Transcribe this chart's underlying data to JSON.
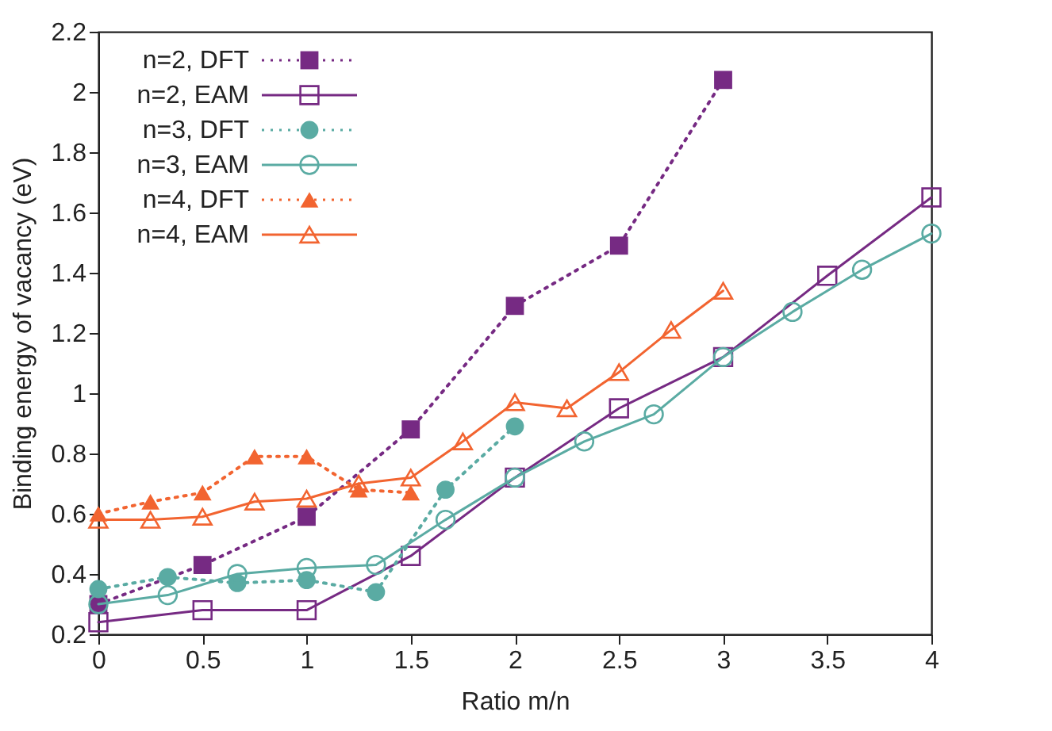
{
  "chart_data": {
    "type": "line",
    "xlabel": "Ratio m/n",
    "ylabel": "Binding energy of vacancy (eV)",
    "xlim": [
      0,
      4
    ],
    "ylim": [
      0.2,
      2.2
    ],
    "xticks": [
      0,
      0.5,
      1,
      1.5,
      2,
      2.5,
      3,
      3.5,
      4
    ],
    "yticks": [
      0.2,
      0.4,
      0.6,
      0.8,
      1,
      1.2,
      1.4,
      1.6,
      1.8,
      2,
      2.2
    ],
    "grid": false,
    "legend": "top left",
    "series": [
      {
        "name": "n=2, DFT",
        "color": "#762a83",
        "marker": "square",
        "line_style": "dotted",
        "x": [
          0,
          0.5,
          1,
          1.5,
          2,
          2.5,
          3
        ],
        "values": [
          0.3,
          0.43,
          0.59,
          0.88,
          1.29,
          1.49,
          2.04
        ]
      },
      {
        "name": "n=2, EAM",
        "color": "#762a83",
        "marker": "square",
        "line_style": "solid",
        "x": [
          0,
          0.5,
          1,
          1.5,
          2,
          2.5,
          3,
          3.5,
          4
        ],
        "values": [
          0.24,
          0.28,
          0.28,
          0.46,
          0.72,
          0.95,
          1.12,
          1.39,
          1.65
        ]
      },
      {
        "name": "n=3, DFT",
        "color": "#5aaba3",
        "marker": "circle",
        "line_style": "dotted",
        "x": [
          0,
          0.333,
          0.667,
          1,
          1.333,
          1.667,
          2
        ],
        "values": [
          0.35,
          0.39,
          0.37,
          0.38,
          0.34,
          0.68,
          0.89
        ]
      },
      {
        "name": "n=3, EAM",
        "color": "#5aaba3",
        "marker": "circle",
        "line_style": "solid",
        "x": [
          0,
          0.333,
          0.667,
          1,
          1.333,
          1.667,
          2,
          2.333,
          2.667,
          3,
          3.333,
          3.667,
          4
        ],
        "values": [
          0.3,
          0.33,
          0.4,
          0.42,
          0.43,
          0.58,
          0.72,
          0.84,
          0.93,
          1.12,
          1.27,
          1.41,
          1.53
        ]
      },
      {
        "name": "n=4, DFT",
        "color": "#f26430",
        "marker": "triangle",
        "line_style": "dotted",
        "x": [
          0,
          0.25,
          0.5,
          0.75,
          1,
          1.25,
          1.5
        ],
        "values": [
          0.6,
          0.64,
          0.67,
          0.79,
          0.79,
          0.68,
          0.67
        ]
      },
      {
        "name": "n=4, EAM",
        "color": "#f26430",
        "marker": "triangle",
        "line_style": "solid",
        "x": [
          0,
          0.25,
          0.5,
          0.75,
          1,
          1.25,
          1.5,
          1.75,
          2,
          2.25,
          2.5,
          2.75,
          3
        ],
        "values": [
          0.58,
          0.58,
          0.59,
          0.64,
          0.65,
          0.7,
          0.72,
          0.84,
          0.97,
          0.95,
          1.07,
          1.21,
          1.34
        ]
      }
    ]
  }
}
